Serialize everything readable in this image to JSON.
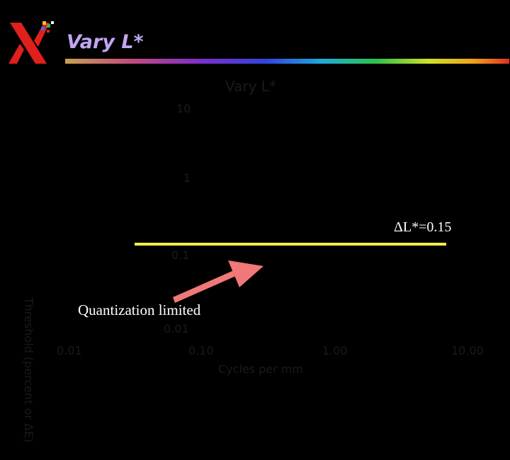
{
  "header": {
    "title": "Vary L*",
    "logo_icon": "xerox-x-logo-icon"
  },
  "chart": {
    "title": "Vary L*",
    "y_ticks": [
      "10",
      "1",
      "0.1",
      "0.01"
    ],
    "x_ticks": [
      "0.01",
      "0.10",
      "1.00",
      "10.00"
    ],
    "xlabel": "Cycles per mm",
    "ylabel": "Threshold (percent or ΔE)"
  },
  "annotations": {
    "delta_label": "ΔL*=0.15",
    "quantization": "Quantization limited",
    "arrow_icon": "arrow-up-right-icon",
    "line_color": "#ffee44"
  },
  "colors": {
    "background": "#000000",
    "title": "#c2a6f2",
    "arrow": "#f07878"
  }
}
